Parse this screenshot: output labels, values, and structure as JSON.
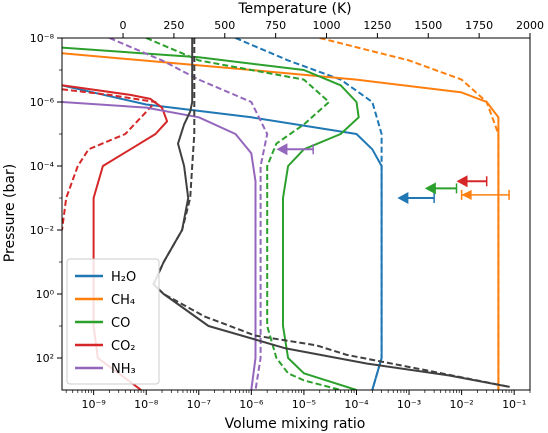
{
  "chart_data": {
    "type": "line",
    "title": "",
    "xlabel": "Volume  mixing ratio",
    "ylabel": "Pressure (bar)",
    "x2label": "Temperature (K)",
    "xscale": "log",
    "yscale": "log",
    "y_inverted": true,
    "xlim": [
      2.5e-10,
      0.2
    ],
    "ylim": [
      1e-08,
      1000.0
    ],
    "x2lim": [
      -300,
      2000
    ],
    "x_ticks": [
      1e-09,
      1e-08,
      1e-07,
      1e-06,
      1e-05,
      0.0001,
      0.001,
      0.01,
      0.1
    ],
    "x_tick_labels": [
      "10⁻⁹",
      "10⁻⁸",
      "10⁻⁷",
      "10⁻⁶",
      "10⁻⁵",
      "10⁻⁴",
      "10⁻³",
      "10⁻²",
      "10⁻¹"
    ],
    "x2_ticks": [
      0,
      250,
      500,
      750,
      1000,
      1250,
      1500,
      1750,
      2000
    ],
    "x2_tick_labels": [
      "0",
      "250",
      "500",
      "750",
      "1000",
      "1250",
      "1500",
      "1750",
      "2000"
    ],
    "y_ticks": [
      1e-08,
      1e-06,
      0.0001,
      0.01,
      1.0,
      100.0
    ],
    "y_tick_labels": [
      "10⁻⁸",
      "10⁻⁶",
      "10⁻⁴",
      "10⁻²",
      "10⁰",
      "10²"
    ],
    "legend": {
      "placement": "lower-left",
      "entries": [
        "H₂O",
        "CH₄",
        "CO",
        "CO₂",
        "NH₃"
      ]
    },
    "series": [
      {
        "name": "H₂O",
        "color": "#1f77b4",
        "style": "solid",
        "points": [
          [
            2.5e-10,
            3e-07
          ],
          [
            1e-08,
            1.2e-06
          ],
          [
            1e-06,
            3e-06
          ],
          [
            0.0001,
            1e-05
          ],
          [
            0.0002,
            3e-05
          ],
          [
            0.0003,
            0.0001
          ],
          [
            0.0003,
            10.0
          ],
          [
            0.0003,
            100.0
          ],
          [
            0.0002,
            1000.0
          ]
        ]
      },
      {
        "name": "H₂O",
        "color": "#1f77b4",
        "style": "dashed",
        "points": [
          [
            5e-07,
            1e-08
          ],
          [
            5e-06,
            5e-08
          ],
          [
            5e-05,
            2e-07
          ],
          [
            0.0002,
            1e-06
          ],
          [
            0.0003,
            1e-05
          ],
          [
            0.0003,
            100.0
          ],
          [
            0.0002,
            1000.0
          ]
        ]
      },
      {
        "name": "CH₄",
        "color": "#ff7f0e",
        "style": "solid",
        "points": [
          [
            2.5e-10,
            3e-08
          ],
          [
            1e-06,
            1e-07
          ],
          [
            0.0001,
            2e-07
          ],
          [
            0.01,
            5e-07
          ],
          [
            0.03,
            1e-06
          ],
          [
            0.05,
            3e-06
          ],
          [
            0.05,
            1e-05
          ],
          [
            0.05,
            1000.0
          ]
        ]
      },
      {
        "name": "CH₄",
        "color": "#ff7f0e",
        "style": "dashed",
        "points": [
          [
            2e-05,
            1e-08
          ],
          [
            0.001,
            5e-08
          ],
          [
            0.01,
            2e-07
          ],
          [
            0.03,
            1e-06
          ],
          [
            0.05,
            1e-05
          ],
          [
            0.05,
            1000.0
          ]
        ]
      },
      {
        "name": "CO",
        "color": "#2ca02c",
        "style": "solid",
        "points": [
          [
            2.5e-10,
            2e-08
          ],
          [
            1e-07,
            4e-08
          ],
          [
            1e-05,
            1e-07
          ],
          [
            5e-05,
            3e-07
          ],
          [
            0.0001,
            1e-06
          ],
          [
            0.00011,
            3e-06
          ],
          [
            5e-05,
            1e-05
          ],
          [
            1e-05,
            3e-05
          ],
          [
            5e-06,
            0.0001
          ],
          [
            4e-06,
            0.001
          ],
          [
            4e-06,
            10.0
          ],
          [
            5e-06,
            100.0
          ],
          [
            1e-05,
            300.0
          ],
          [
            0.0001,
            1000.0
          ]
        ]
      },
      {
        "name": "CO",
        "color": "#2ca02c",
        "style": "dashed",
        "points": [
          [
            1e-08,
            1e-08
          ],
          [
            1e-07,
            5e-08
          ],
          [
            1e-05,
            2e-07
          ],
          [
            3e-05,
            1e-06
          ],
          [
            1e-05,
            5e-06
          ],
          [
            3e-06,
            2e-05
          ],
          [
            2e-06,
            0.0001
          ],
          [
            2e-06,
            10.0
          ],
          [
            3e-06,
            100.0
          ],
          [
            5e-06,
            300.0
          ],
          [
            1e-05,
            500.0
          ],
          [
            5e-05,
            1000.0
          ]
        ]
      },
      {
        "name": "CO₂",
        "color": "#d62728",
        "style": "solid",
        "points": [
          [
            2.5e-10,
            3e-07
          ],
          [
            5e-09,
            6e-07
          ],
          [
            1.2e-08,
            8e-07
          ],
          [
            2e-08,
            1.5e-06
          ],
          [
            2.5e-08,
            4e-06
          ],
          [
            1.5e-08,
            1e-05
          ],
          [
            5e-09,
            3e-05
          ],
          [
            1.5e-09,
            0.0001
          ],
          [
            1e-09,
            0.001
          ],
          [
            1e-09,
            10.0
          ],
          [
            1.2e-09,
            100.0
          ],
          [
            3e-09,
            300.0
          ],
          [
            8e-09,
            1000.0
          ]
        ]
      },
      {
        "name": "CO₂",
        "color": "#d62728",
        "style": "dashed",
        "points": [
          [
            2.5e-10,
            4e-07
          ],
          [
            2e-09,
            6e-07
          ],
          [
            1.5e-08,
            1e-06
          ],
          [
            4e-09,
            1e-05
          ],
          [
            8e-10,
            3e-05
          ],
          [
            5e-10,
            0.0001
          ],
          [
            3e-10,
            0.001
          ],
          [
            2.5e-10,
            0.01
          ]
        ]
      },
      {
        "name": "NH₃",
        "color": "#9467bd",
        "style": "solid",
        "points": [
          [
            2.5e-10,
            1e-06
          ],
          [
            1e-08,
            1.5e-06
          ],
          [
            1e-07,
            3e-06
          ],
          [
            5e-07,
            1e-05
          ],
          [
            1e-06,
            4e-05
          ],
          [
            1.2e-06,
            0.0003
          ],
          [
            1.2e-06,
            10.0
          ],
          [
            1.2e-06,
            100.0
          ],
          [
            1e-06,
            1000.0
          ]
        ]
      },
      {
        "name": "NH₃",
        "color": "#9467bd",
        "style": "dashed",
        "points": [
          [
            2e-09,
            1e-08
          ],
          [
            2e-08,
            5e-08
          ],
          [
            1e-07,
            2e-07
          ],
          [
            1e-06,
            1e-06
          ],
          [
            2e-06,
            1e-05
          ],
          [
            1.5e-06,
            0.0001
          ],
          [
            1.5e-06,
            100.0
          ],
          [
            1.2e-06,
            1000.0
          ]
        ]
      },
      {
        "name": "Temperature",
        "color": "#404040",
        "style": "solid",
        "axis": "x2",
        "points": [
          [
            340,
            1e-08
          ],
          [
            340,
            1e-06
          ],
          [
            330,
            2e-06
          ],
          [
            300,
            5e-06
          ],
          [
            270,
            2e-05
          ],
          [
            300,
            0.0001
          ],
          [
            320,
            0.001
          ],
          [
            290,
            0.01
          ],
          [
            200,
            0.1
          ],
          [
            150,
            0.5
          ],
          [
            200,
            1
          ],
          [
            420,
            10
          ],
          [
            800,
            50
          ],
          [
            1200,
            150
          ],
          [
            1600,
            350
          ],
          [
            1900,
            800
          ]
        ]
      },
      {
        "name": "Temperature",
        "color": "#404040",
        "style": "dashed",
        "axis": "x2",
        "points": [
          [
            350,
            1e-08
          ],
          [
            350,
            1e-05
          ],
          [
            340,
            0.0001
          ],
          [
            330,
            0.001
          ],
          [
            290,
            0.01
          ],
          [
            200,
            0.1
          ],
          [
            150,
            0.5
          ],
          [
            200,
            1
          ],
          [
            400,
            5
          ],
          [
            650,
            20
          ],
          [
            950,
            40
          ],
          [
            1100,
            80
          ],
          [
            1500,
            250
          ],
          [
            1900,
            800
          ]
        ]
      }
    ],
    "arrows": [
      {
        "color": "#9467bd",
        "tail_x": 1.5e-05,
        "head_x": 3e-06,
        "y": 3e-05
      },
      {
        "color": "#1f77b4",
        "tail_x": 0.003,
        "head_x": 0.0006,
        "y": 0.001
      },
      {
        "color": "#2ca02c",
        "tail_x": 0.008,
        "head_x": 0.002,
        "y": 0.0005
      },
      {
        "color": "#d62728",
        "tail_x": 0.03,
        "head_x": 0.008,
        "y": 0.0003
      },
      {
        "color": "#ff7f0e",
        "tail_x": 0.08,
        "head_x": 0.01,
        "y": 0.0008,
        "errorbar": [
          0.01,
          0.08
        ]
      }
    ]
  }
}
